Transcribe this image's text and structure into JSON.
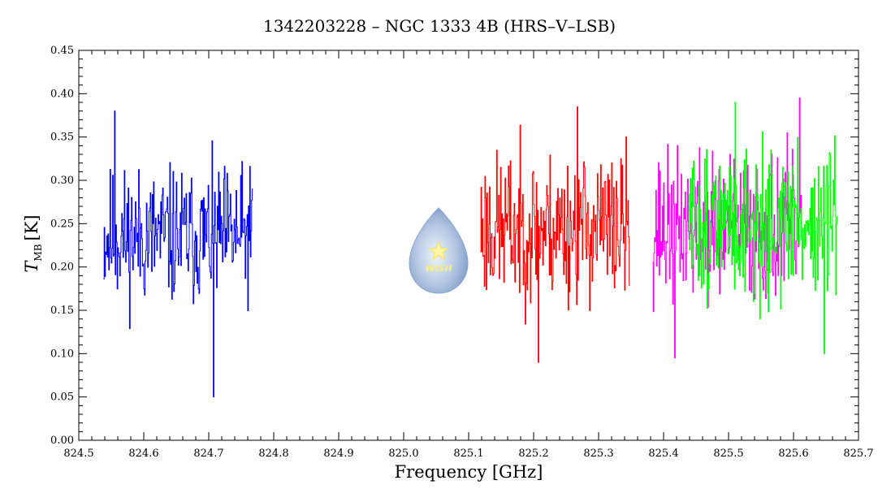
{
  "chart_data": {
    "type": "line",
    "title": "1342203228 – NGC 1333 4B (HRS–V–LSB)",
    "xlabel": "Frequency [GHz]",
    "ylabel": {
      "main": "T",
      "sub": "MB",
      "unit": "[K]"
    },
    "xlim": [
      824.5,
      825.7
    ],
    "ylim": [
      0.0,
      0.45
    ],
    "xticks": [
      "824.5",
      "824.6",
      "824.7",
      "824.8",
      "824.9",
      "825.0",
      "825.1",
      "825.2",
      "825.3",
      "825.4",
      "825.5",
      "825.6",
      "825.7"
    ],
    "yticks": [
      "0.00",
      "0.05",
      "0.10",
      "0.15",
      "0.20",
      "0.25",
      "0.30",
      "0.35",
      "0.40",
      "0.45"
    ],
    "grid": false,
    "logo_text": "WISH",
    "series": [
      {
        "color": "#0000ff",
        "x_range": [
          824.538,
          824.768
        ],
        "mean": 0.235,
        "noise": 0.05,
        "points": 230,
        "min": 0.05,
        "max": 0.38,
        "seed": 11
      },
      {
        "color": "#ff0000",
        "x_range": [
          825.118,
          825.348
        ],
        "mean": 0.245,
        "noise": 0.055,
        "points": 230,
        "min": 0.09,
        "max": 0.385,
        "seed": 23
      },
      {
        "color": "#ff00ff",
        "x_range": [
          825.383,
          825.613
        ],
        "mean": 0.245,
        "noise": 0.055,
        "points": 230,
        "min": 0.095,
        "max": 0.395,
        "seed": 37
      },
      {
        "color": "#00ff00",
        "x_range": [
          825.438,
          825.668
        ],
        "mean": 0.25,
        "noise": 0.055,
        "points": 230,
        "min": 0.1,
        "max": 0.39,
        "seed": 51
      }
    ]
  }
}
